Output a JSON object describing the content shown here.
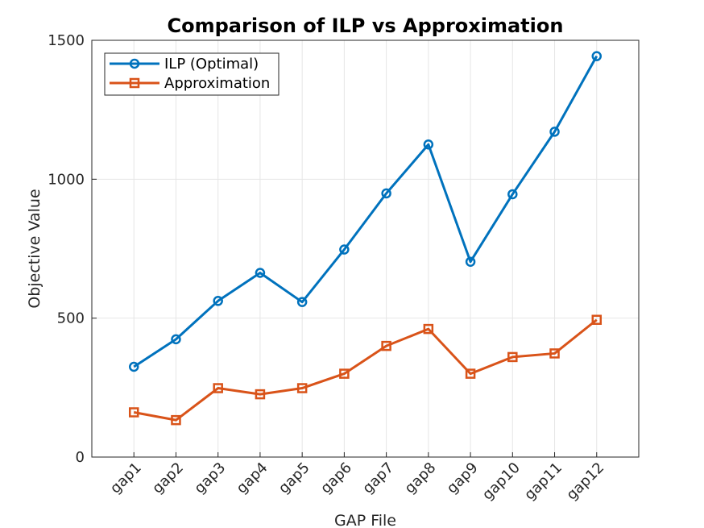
{
  "chart_data": {
    "type": "line",
    "title": "Comparison of ILP vs Approximation",
    "xlabel": "GAP File",
    "ylabel": "Objective Value",
    "categories": [
      "gap1",
      "gap2",
      "gap3",
      "gap4",
      "gap5",
      "gap6",
      "gap7",
      "gap8",
      "gap9",
      "gap10",
      "gap11",
      "gap12"
    ],
    "ylim": [
      0,
      1500
    ],
    "yticks": [
      0,
      500,
      1000,
      1500
    ],
    "grid": true,
    "legend_position": "top-left",
    "series": [
      {
        "name": "ILP (Optimal)",
        "color": "#0072BD",
        "marker": "circle",
        "values": [
          325,
          424,
          562,
          663,
          558,
          747,
          949,
          1125,
          703,
          946,
          1171,
          1443
        ]
      },
      {
        "name": "Approximation",
        "color": "#D95319",
        "marker": "square",
        "values": [
          161,
          133,
          248,
          226,
          248,
          300,
          400,
          461,
          300,
          360,
          373,
          494
        ]
      }
    ]
  }
}
